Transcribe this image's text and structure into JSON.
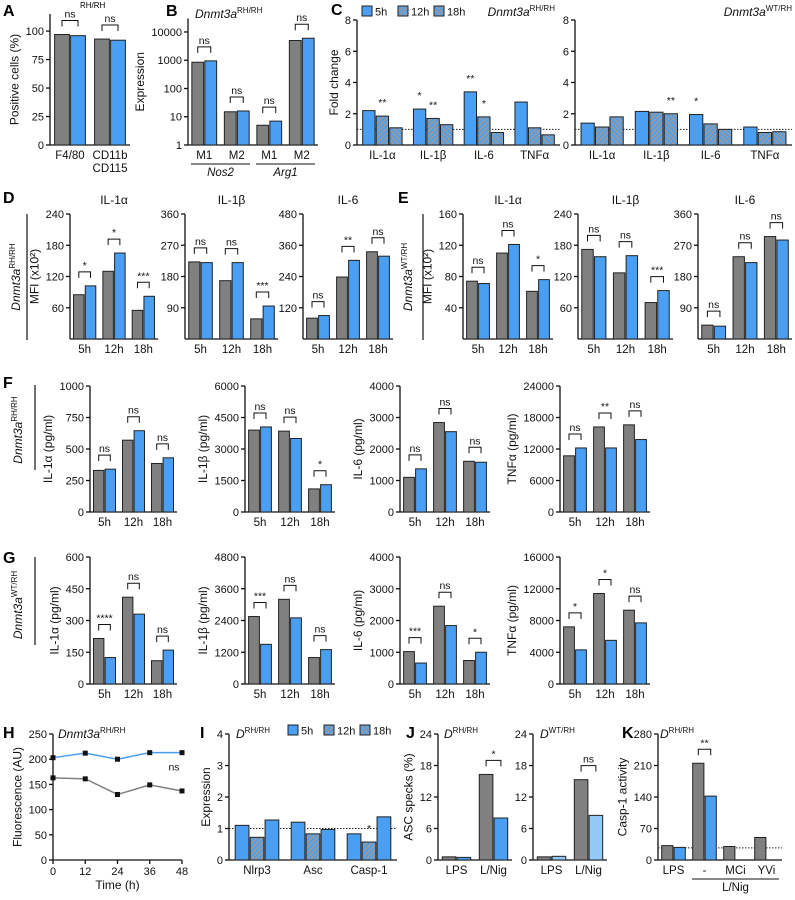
{
  "panels": [
    "A",
    "B",
    "C",
    "D",
    "E",
    "F",
    "G",
    "H",
    "I",
    "J",
    "K"
  ],
  "colors": {
    "gray": "#808080",
    "blue": "#4b9ff2",
    "light_blue": "#94c8f6",
    "hatch": "#9a9a9a",
    "edge": "#222222"
  },
  "note_a": "RH/RH",
  "rows": [
    {
      "row": "D",
      "gene": "Dnmt3a",
      "sup": "RH/RH"
    },
    {
      "row": "E",
      "gene": "Dnmt3a",
      "sup": "WT/RH"
    },
    {
      "row": "F",
      "gene": "Dnmt3a",
      "sup": "RH/RH"
    },
    {
      "row": "G",
      "gene": "Dnmt3a",
      "sup": "WT/RH"
    }
  ],
  "chart_data": [
    {
      "type": "bar",
      "ylabel": "Positive cells (%)",
      "ylim": [
        0,
        115
      ],
      "yticks": [
        0,
        25,
        50,
        75,
        100
      ],
      "categories": [
        "F4/80",
        [
          "CD11b",
          "CD115"
        ]
      ],
      "series": [
        {
          "color": "gray",
          "values": [
            97,
            93
          ]
        },
        {
          "color": "blue",
          "values": [
            96,
            92
          ]
        }
      ],
      "significance": [
        "ns",
        "ns"
      ]
    },
    {
      "type": "bar",
      "genotype": {
        "gene": "Dnmt3a",
        "sup": "RH/RH"
      },
      "ylabel": "Expression",
      "yscale": "log",
      "ylim": [
        1,
        30000
      ],
      "yticks": [
        1,
        10,
        100,
        1000,
        10000
      ],
      "categories": [
        "M1",
        "M2",
        "M1",
        "M2"
      ],
      "category_groups": [
        {
          "label": "Nos2",
          "span": [
            0,
            1
          ]
        },
        {
          "label": "Arg1",
          "span": [
            2,
            3
          ]
        }
      ],
      "series": [
        {
          "color": "gray",
          "values": [
            850,
            15,
            5,
            5000
          ]
        },
        {
          "color": "blue",
          "values": [
            950,
            16,
            7,
            6000
          ]
        }
      ],
      "significance": [
        "ns",
        "ns",
        "ns",
        "ns"
      ]
    },
    {
      "type": "bar",
      "legend": {
        "position": "top-left"
      },
      "genotype": {
        "gene": "Dnmt3a",
        "sup": "RH/RH"
      },
      "ylabel": "Fold change",
      "ylim": [
        0,
        8
      ],
      "yticks": [
        0,
        2,
        4,
        6,
        8
      ],
      "reference_line": 1,
      "categories": [
        "IL-1α",
        "IL-1β",
        "IL-6",
        "TNFα"
      ],
      "series": [
        {
          "name": "5h",
          "color": "blue",
          "pattern": "solid",
          "values": [
            2.2,
            2.3,
            3.4,
            2.75
          ]
        },
        {
          "name": "12h",
          "color": "blue",
          "pattern": "stripes-a",
          "values": [
            1.85,
            1.7,
            1.8,
            1.1
          ]
        },
        {
          "name": "18h",
          "color": "blue",
          "pattern": "stripes-b",
          "values": [
            1.1,
            1.3,
            0.8,
            0.65
          ]
        }
      ],
      "significance": [
        [
          "",
          "*",
          "**",
          ""
        ],
        [
          "**",
          "**",
          "*",
          ""
        ],
        [
          "",
          "",
          "",
          ""
        ]
      ]
    },
    {
      "type": "bar",
      "genotype": {
        "gene": "Dnmt3a",
        "sup": "WT/RH"
      },
      "ylim": [
        0,
        8
      ],
      "yticks": [
        0,
        2,
        4,
        6,
        8
      ],
      "reference_line": 1,
      "categories": [
        "IL-1α",
        "IL-1β",
        "IL-6",
        "TNFα"
      ],
      "series": [
        {
          "name": "5h",
          "color": "blue",
          "pattern": "solid",
          "values": [
            1.4,
            2.15,
            1.95,
            1.15
          ]
        },
        {
          "name": "12h",
          "color": "blue",
          "pattern": "stripes-a",
          "values": [
            1.15,
            2.1,
            1.35,
            0.8
          ]
        },
        {
          "name": "18h",
          "color": "blue",
          "pattern": "stripes-b",
          "values": [
            1.8,
            2.0,
            1.0,
            0.85
          ]
        }
      ],
      "significance": [
        [
          "",
          "",
          "*",
          ""
        ],
        [
          "",
          "",
          "",
          ""
        ],
        [
          "",
          "**",
          "",
          ""
        ]
      ]
    },
    {
      "type": "bar",
      "title": "IL-1α",
      "ylabel": "MFI (x10²)",
      "ylim": [
        0,
        240
      ],
      "yticks": [
        60,
        120,
        180,
        240
      ],
      "categories": [
        "5h",
        "12h",
        "18h"
      ],
      "series": [
        {
          "color": "gray",
          "values": [
            85,
            130,
            55
          ]
        },
        {
          "color": "blue",
          "values": [
            102,
            165,
            82
          ]
        }
      ],
      "significance": [
        "*",
        "*",
        "***"
      ]
    },
    {
      "type": "bar",
      "title": "IL-1β",
      "ylim": [
        0,
        360
      ],
      "yticks": [
        90,
        180,
        270,
        360
      ],
      "categories": [
        "5h",
        "12h",
        "18h"
      ],
      "series": [
        {
          "color": "gray",
          "values": [
            222,
            168,
            58
          ]
        },
        {
          "color": "blue",
          "values": [
            220,
            220,
            95
          ]
        }
      ],
      "significance": [
        "ns",
        "ns",
        "***"
      ]
    },
    {
      "type": "bar",
      "title": "IL-6",
      "ylim": [
        0,
        480
      ],
      "yticks": [
        120,
        240,
        360,
        480
      ],
      "categories": [
        "5h",
        "12h",
        "18h"
      ],
      "series": [
        {
          "color": "gray",
          "values": [
            80,
            238,
            335
          ]
        },
        {
          "color": "blue",
          "values": [
            90,
            302,
            318
          ]
        }
      ],
      "significance": [
        "ns",
        "**",
        "ns"
      ]
    },
    {
      "type": "bar",
      "title": "IL-1α",
      "ylabel": "MFI (x10²)",
      "ylim": [
        0,
        160
      ],
      "yticks": [
        40,
        80,
        120,
        160
      ],
      "categories": [
        "5h",
        "12h",
        "18h"
      ],
      "series": [
        {
          "color": "gray",
          "values": [
            74,
            110,
            61
          ]
        },
        {
          "color": "blue",
          "values": [
            71,
            121,
            76
          ]
        }
      ],
      "significance": [
        "ns",
        "ns",
        "*"
      ]
    },
    {
      "type": "bar",
      "title": "IL-1β",
      "ylim": [
        0,
        240
      ],
      "yticks": [
        60,
        120,
        180,
        240
      ],
      "categories": [
        "5h",
        "12h",
        "18h"
      ],
      "series": [
        {
          "color": "gray",
          "values": [
            172,
            127,
            70
          ]
        },
        {
          "color": "blue",
          "values": [
            158,
            160,
            93
          ]
        }
      ],
      "significance": [
        "ns",
        "ns",
        "***"
      ]
    },
    {
      "type": "bar",
      "title": "IL-6",
      "ylim": [
        0,
        360
      ],
      "yticks": [
        90,
        180,
        270,
        360
      ],
      "categories": [
        "5h",
        "12h",
        "18h"
      ],
      "series": [
        {
          "color": "gray",
          "values": [
            40,
            237,
            295
          ]
        },
        {
          "color": "blue",
          "values": [
            37,
            220,
            285
          ]
        }
      ],
      "significance": [
        "ns",
        "ns",
        "ns"
      ]
    },
    {
      "type": "bar",
      "ylabel": "IL-1α (pg/ml)",
      "ylim": [
        0,
        1000
      ],
      "yticks": [
        0,
        250,
        500,
        750,
        1000
      ],
      "categories": [
        "5h",
        "12h",
        "18h"
      ],
      "series": [
        {
          "color": "gray",
          "values": [
            330,
            570,
            385
          ]
        },
        {
          "color": "blue",
          "values": [
            340,
            645,
            430
          ]
        }
      ],
      "significance": [
        "ns",
        "ns",
        "ns"
      ]
    },
    {
      "type": "bar",
      "ylabel": "IL-1β (pg/ml)",
      "ylim": [
        0,
        6000
      ],
      "yticks": [
        0,
        1500,
        3000,
        4500,
        6000
      ],
      "categories": [
        "5h",
        "12h",
        "18h"
      ],
      "series": [
        {
          "color": "gray",
          "values": [
            3900,
            3850,
            1100
          ]
        },
        {
          "color": "blue",
          "values": [
            4050,
            3500,
            1300
          ]
        }
      ],
      "significance": [
        "ns",
        "ns",
        "*"
      ]
    },
    {
      "type": "bar",
      "ylabel": "IL-6 (pg/ml)",
      "ylim": [
        0,
        4000
      ],
      "yticks": [
        0,
        1000,
        2000,
        3000,
        4000
      ],
      "categories": [
        "5h",
        "12h",
        "18h"
      ],
      "series": [
        {
          "color": "gray",
          "values": [
            1100,
            2840,
            1610
          ]
        },
        {
          "color": "blue",
          "values": [
            1370,
            2550,
            1580
          ]
        }
      ],
      "significance": [
        "ns",
        "ns",
        "ns"
      ]
    },
    {
      "type": "bar",
      "ylabel": "TNFα (pg/ml)",
      "ylim": [
        0,
        24000
      ],
      "yticks": [
        0,
        6000,
        12000,
        18000,
        24000
      ],
      "categories": [
        "5h",
        "12h",
        "18h"
      ],
      "series": [
        {
          "color": "gray",
          "values": [
            10700,
            16200,
            16600
          ]
        },
        {
          "color": "blue",
          "values": [
            12200,
            12200,
            13800
          ]
        }
      ],
      "significance": [
        "ns",
        "**",
        "ns"
      ]
    },
    {
      "type": "bar",
      "ylabel": "IL-1α (pg/ml)",
      "ylim": [
        0,
        600
      ],
      "yticks": [
        0,
        150,
        300,
        450,
        600
      ],
      "categories": [
        "5h",
        "12h",
        "18h"
      ],
      "series": [
        {
          "color": "gray",
          "values": [
            215,
            410,
            110
          ]
        },
        {
          "color": "blue",
          "values": [
            125,
            330,
            160
          ]
        }
      ],
      "significance": [
        "****",
        "ns",
        "ns"
      ]
    },
    {
      "type": "bar",
      "ylabel": "IL-1β (pg/ml)",
      "ylim": [
        0,
        4800
      ],
      "yticks": [
        0,
        1200,
        2400,
        3600,
        4800
      ],
      "categories": [
        "5h",
        "12h",
        "18h"
      ],
      "series": [
        {
          "color": "gray",
          "values": [
            2550,
            3200,
            1000
          ]
        },
        {
          "color": "blue",
          "values": [
            1500,
            2500,
            1300
          ]
        }
      ],
      "significance": [
        "***",
        "ns",
        "ns"
      ]
    },
    {
      "type": "bar",
      "ylabel": "IL-6 (pg/ml)",
      "ylim": [
        0,
        4000
      ],
      "yticks": [
        0,
        1000,
        2000,
        3000,
        4000
      ],
      "categories": [
        "5h",
        "12h",
        "18h"
      ],
      "series": [
        {
          "color": "gray",
          "values": [
            1020,
            2450,
            740
          ]
        },
        {
          "color": "blue",
          "values": [
            660,
            1840,
            1000
          ]
        }
      ],
      "significance": [
        "***",
        "ns",
        "*"
      ]
    },
    {
      "type": "bar",
      "ylabel": "TNFα (pg/ml)",
      "ylim": [
        0,
        16000
      ],
      "yticks": [
        0,
        4000,
        8000,
        12000,
        16000
      ],
      "categories": [
        "5h",
        "12h",
        "18h"
      ],
      "series": [
        {
          "color": "gray",
          "values": [
            7200,
            11400,
            9300
          ]
        },
        {
          "color": "blue",
          "values": [
            4300,
            5500,
            7700
          ]
        }
      ],
      "significance": [
        "*",
        "*",
        "ns"
      ]
    },
    {
      "type": "line",
      "genotype": {
        "gene": "Dnmt3a",
        "sup": "RH/RH"
      },
      "ylabel": "Fluorescence (AU)",
      "xlabel": "Time (h)",
      "xlim": [
        0,
        48
      ],
      "xticks": [
        0,
        12,
        24,
        36,
        48
      ],
      "ylim": [
        0,
        250
      ],
      "yticks": [
        0,
        50,
        100,
        150,
        200,
        250
      ],
      "x": [
        0,
        12,
        24,
        36,
        48
      ],
      "series": [
        {
          "color": "blue",
          "values": [
            203,
            212,
            200,
            213,
            213
          ]
        },
        {
          "color": "gray",
          "values": [
            163,
            161,
            130,
            149,
            137
          ]
        }
      ],
      "significance": "ns"
    },
    {
      "type": "bar",
      "legend": {
        "position": "top-right"
      },
      "genotype": {
        "gene": "D",
        "sup": "RH/RH"
      },
      "ylabel": "Expression",
      "ylim": [
        0,
        4
      ],
      "yticks": [
        0,
        1,
        2,
        3,
        4
      ],
      "reference_line": 1,
      "categories": [
        "Nlrp3",
        "Asc",
        "Casp-1"
      ],
      "series": [
        {
          "name": "5h",
          "color": "blue",
          "pattern": "solid",
          "values": [
            1.1,
            1.2,
            0.83
          ]
        },
        {
          "name": "12h",
          "color": "blue",
          "pattern": "stripes-a",
          "values": [
            0.72,
            0.83,
            0.57
          ]
        },
        {
          "name": "18h",
          "color": "blue",
          "pattern": "stripes-b",
          "values": [
            1.27,
            0.97,
            1.37
          ]
        }
      ],
      "significance": [
        [
          "",
          "",
          ""
        ],
        [
          "",
          "",
          "*"
        ],
        [
          "",
          "",
          ""
        ]
      ]
    },
    {
      "type": "bar",
      "genotype": {
        "gene": "D",
        "sup": "RH/RH"
      },
      "ylabel": "ASC specks (%)",
      "ylim": [
        0,
        24
      ],
      "yticks": [
        0,
        6,
        12,
        18,
        24
      ],
      "categories": [
        "LPS",
        "L/Nig"
      ],
      "series": [
        {
          "color": "gray",
          "values": [
            0.6,
            16.3
          ]
        },
        {
          "color": "blue",
          "values": [
            0.5,
            8.0
          ]
        }
      ],
      "significance": [
        "",
        "*"
      ]
    },
    {
      "type": "bar",
      "genotype": {
        "gene": "D",
        "sup": "WT/RH"
      },
      "ylim": [
        0,
        24
      ],
      "yticks": [
        0,
        6,
        12,
        18,
        24
      ],
      "categories": [
        "LPS",
        "L/Nig"
      ],
      "series": [
        {
          "color": "gray",
          "values": [
            0.6,
            15.3
          ]
        },
        {
          "color": "light_blue",
          "values": [
            0.7,
            8.5
          ]
        }
      ],
      "significance": [
        "",
        "ns"
      ]
    },
    {
      "type": "bar",
      "genotype": {
        "gene": "D",
        "sup": "RH/RH"
      },
      "ylabel": "Casp-1 activity",
      "ylim": [
        0,
        280
      ],
      "yticks": [
        0,
        70,
        140,
        210,
        280
      ],
      "reference_line": 27,
      "categories": [
        "LPS",
        "-",
        "MCi",
        "YVi"
      ],
      "category_groups": [
        {
          "label": "L/Nig",
          "span": [
            1,
            3
          ]
        }
      ],
      "series": [
        {
          "color": "gray",
          "values": [
            32,
            215,
            30,
            50
          ]
        },
        {
          "color": "blue",
          "values": [
            28,
            142,
            null,
            null
          ]
        }
      ],
      "significance": [
        "",
        "**",
        "",
        ""
      ]
    }
  ]
}
